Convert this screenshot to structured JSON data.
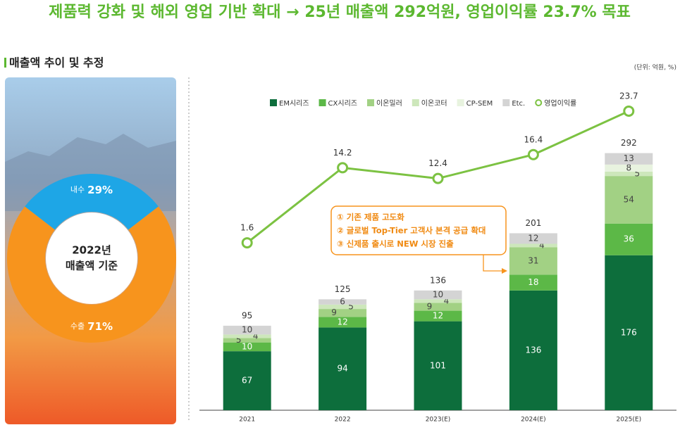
{
  "header": {
    "title": "제품력 강화 및 해외 영업 기반 확대 → 25년 매출액 292억원, 영업이익률 23.7% 목표",
    "section": "매출액 추이 및 추정",
    "unit": "(단위: 억원, %)"
  },
  "chart_data": [
    {
      "type": "pie",
      "center_label": [
        "2022년",
        "매출액 기준"
      ],
      "categories": [
        "내수",
        "수출"
      ],
      "values": [
        29,
        71
      ],
      "value_labels": [
        "29%",
        "71%"
      ],
      "colors": [
        "#1ea6e6",
        "#f7941d"
      ]
    },
    {
      "type": "bar",
      "stacked": true,
      "categories": [
        "2021",
        "2022",
        "2023(E)",
        "2024(E)",
        "2025(E)"
      ],
      "ylim": [
        0,
        362
      ],
      "y2lim": [
        -26.5,
        27
      ],
      "series": [
        {
          "name": "EM시리즈",
          "color": "#0d6e3c",
          "values": [
            67,
            94,
            101,
            136,
            176
          ]
        },
        {
          "name": "CX시리즈",
          "color": "#5cb847",
          "values": [
            10,
            12,
            12,
            18,
            36
          ]
        },
        {
          "name": "이온밀러",
          "color": "#a2d184",
          "values": [
            5,
            9,
            9,
            31,
            54
          ]
        },
        {
          "name": "이온코터",
          "color": "#cde7bb",
          "values": [
            4,
            5,
            4,
            4,
            5
          ]
        },
        {
          "name": "CP-SEM",
          "color": "#e8f3df",
          "values": [
            null,
            null,
            null,
            null,
            8
          ]
        },
        {
          "name": "Etc.",
          "color": "#d4d4d4",
          "values": [
            10,
            6,
            10,
            12,
            13
          ]
        },
        {
          "name": "영업이익률",
          "type": "line",
          "axis": "y2",
          "color": "#7cc242",
          "values": [
            1.6,
            14.2,
            12.4,
            16.4,
            23.7
          ]
        }
      ],
      "totals": [
        95,
        125,
        136,
        201,
        292
      ],
      "annotations": [
        "① 기존 제품 고도화",
        "② 글로벌 Top-Tier 고객사 본격 공급 확대",
        "③ 신제품 출시로 NEW 시장 진출"
      ]
    }
  ]
}
